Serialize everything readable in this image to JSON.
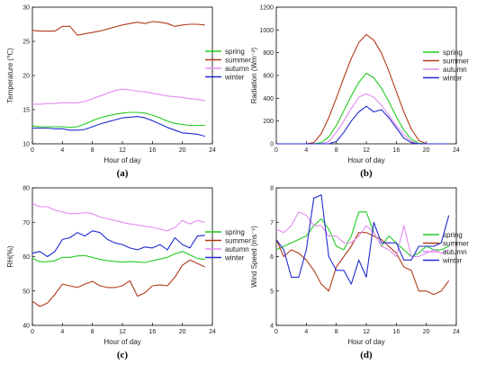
{
  "colors": {
    "spring": "#22cc22",
    "summer": "#b23a1a",
    "autumn": "#e38cf0",
    "winter": "#1f2bd0"
  },
  "chart_data": [
    {
      "id": "a",
      "type": "line",
      "panel_label": "(a)",
      "xlabel": "Hour of day",
      "ylabel": "Temperature (℃)",
      "xlim": [
        0,
        24
      ],
      "ylim": [
        10,
        30
      ],
      "xticks": [
        0,
        4,
        8,
        12,
        16,
        20,
        24
      ],
      "yticks": [
        10,
        15,
        20,
        25,
        30
      ],
      "legend_position": "right",
      "x": [
        0,
        1,
        2,
        3,
        4,
        5,
        6,
        7,
        8,
        9,
        10,
        11,
        12,
        13,
        14,
        15,
        16,
        17,
        18,
        19,
        20,
        21,
        22,
        23
      ],
      "series": [
        {
          "name": "spring",
          "color_key": "spring",
          "values": [
            12.6,
            12.5,
            12.5,
            12.5,
            12.5,
            12.4,
            12.5,
            12.9,
            13.4,
            13.8,
            14.1,
            14.3,
            14.5,
            14.6,
            14.6,
            14.5,
            14.2,
            13.8,
            13.3,
            13.0,
            12.8,
            12.7,
            12.7,
            12.7
          ]
        },
        {
          "name": "summer",
          "color_key": "summer",
          "values": [
            26.6,
            26.5,
            26.5,
            26.5,
            27.2,
            27.2,
            25.9,
            26.1,
            26.3,
            26.5,
            26.8,
            27.1,
            27.4,
            27.6,
            27.8,
            27.6,
            27.9,
            27.8,
            27.6,
            27.2,
            27.4,
            27.5,
            27.5,
            27.4
          ]
        },
        {
          "name": "autumn",
          "color_key": "autumn",
          "values": [
            15.8,
            15.8,
            15.9,
            15.9,
            16.0,
            16.0,
            16.0,
            16.2,
            16.6,
            17.0,
            17.4,
            17.8,
            18.0,
            17.9,
            17.7,
            17.6,
            17.4,
            17.2,
            17.0,
            16.9,
            16.8,
            16.6,
            16.5,
            16.3
          ]
        },
        {
          "name": "winter",
          "color_key": "winter",
          "values": [
            12.3,
            12.3,
            12.3,
            12.2,
            12.2,
            12.0,
            12.0,
            12.1,
            12.5,
            12.9,
            13.2,
            13.5,
            13.8,
            13.9,
            14.0,
            13.8,
            13.4,
            12.9,
            12.4,
            12.0,
            11.6,
            11.5,
            11.4,
            11.1
          ]
        }
      ]
    },
    {
      "id": "b",
      "type": "line",
      "panel_label": "(b)",
      "xlabel": "Hour of day",
      "ylabel": "Radiation (Wm⁻²)",
      "xlim": [
        0,
        24
      ],
      "ylim": [
        0,
        1200
      ],
      "xticks": [
        0,
        4,
        8,
        12,
        16,
        20,
        24
      ],
      "yticks": [
        0,
        200,
        400,
        600,
        800,
        1000,
        1200
      ],
      "legend_position": "top-right",
      "x": [
        0,
        1,
        2,
        3,
        4,
        5,
        6,
        7,
        8,
        9,
        10,
        11,
        12,
        13,
        14,
        15,
        16,
        17,
        18,
        19,
        20,
        21,
        22,
        23
      ],
      "series": [
        {
          "name": "spring",
          "color_key": "spring",
          "values": [
            0,
            0,
            0,
            0,
            0,
            0,
            10,
            60,
            160,
            290,
            420,
            540,
            620,
            580,
            490,
            370,
            240,
            120,
            40,
            5,
            0,
            0,
            0,
            0
          ]
        },
        {
          "name": "summer",
          "color_key": "summer",
          "values": [
            0,
            0,
            0,
            0,
            0,
            10,
            90,
            230,
            400,
            580,
            750,
            890,
            960,
            910,
            800,
            640,
            460,
            280,
            130,
            30,
            0,
            0,
            0,
            0
          ]
        },
        {
          "name": "autumn",
          "color_key": "autumn",
          "values": [
            0,
            0,
            0,
            0,
            0,
            0,
            0,
            20,
            100,
            200,
            310,
            410,
            440,
            410,
            340,
            250,
            160,
            80,
            20,
            0,
            0,
            0,
            0,
            0
          ]
        },
        {
          "name": "winter",
          "color_key": "winter",
          "values": [
            0,
            0,
            0,
            0,
            0,
            0,
            0,
            0,
            20,
            100,
            200,
            280,
            330,
            280,
            300,
            230,
            140,
            50,
            10,
            0,
            0,
            0,
            0,
            0
          ]
        }
      ]
    },
    {
      "id": "c",
      "type": "line",
      "panel_label": "(c)",
      "xlabel": "Hour of day",
      "ylabel": "RH(%)",
      "xlim": [
        0,
        24
      ],
      "ylim": [
        40,
        80
      ],
      "xticks": [
        0,
        4,
        8,
        12,
        16,
        20,
        24
      ],
      "yticks": [
        40,
        50,
        60,
        70,
        80
      ],
      "legend_position": "right",
      "x": [
        0,
        1,
        2,
        3,
        4,
        5,
        6,
        7,
        8,
        9,
        10,
        11,
        12,
        13,
        14,
        15,
        16,
        17,
        18,
        19,
        20,
        21,
        22,
        23
      ],
      "series": [
        {
          "name": "spring",
          "color_key": "spring",
          "values": [
            59.5,
            58.5,
            58.5,
            58.8,
            59.8,
            59.8,
            60.2,
            60.3,
            59.8,
            59.2,
            58.8,
            58.6,
            58.4,
            58.6,
            58.4,
            58.3,
            58.8,
            59.3,
            59.8,
            60.8,
            61.5,
            60.5,
            59.5,
            59.2
          ]
        },
        {
          "name": "summer",
          "color_key": "summer",
          "values": [
            47.0,
            45.5,
            46.5,
            49.0,
            52.0,
            51.5,
            51.0,
            52.0,
            52.8,
            51.5,
            51.0,
            51.0,
            51.5,
            53.0,
            48.5,
            49.5,
            51.5,
            51.8,
            51.5,
            54.0,
            57.5,
            59.0,
            58.0,
            57.0
          ]
        },
        {
          "name": "autumn",
          "color_key": "autumn",
          "values": [
            75.5,
            74.5,
            74.5,
            73.5,
            73.0,
            72.5,
            72.5,
            72.8,
            72.5,
            71.5,
            71.0,
            70.5,
            70.0,
            69.5,
            69.2,
            68.8,
            68.5,
            68.0,
            67.5,
            68.5,
            70.5,
            69.5,
            70.5,
            70.0
          ]
        },
        {
          "name": "winter",
          "color_key": "winter",
          "values": [
            61.0,
            61.5,
            60.0,
            61.5,
            65.0,
            65.5,
            67.0,
            66.0,
            67.5,
            67.0,
            65.0,
            64.0,
            63.5,
            62.5,
            62.0,
            62.8,
            62.5,
            63.5,
            62.0,
            65.5,
            63.5,
            62.5,
            66.0,
            66.2
          ]
        }
      ]
    },
    {
      "id": "d",
      "type": "line",
      "panel_label": "(d)",
      "xlabel": "Hour of day",
      "ylabel": "Wind Speed (ms⁻¹)",
      "xlim": [
        0,
        24
      ],
      "ylim": [
        4,
        8
      ],
      "xticks": [
        0,
        4,
        8,
        12,
        16,
        20,
        24
      ],
      "yticks": [
        4,
        5,
        6,
        7,
        8
      ],
      "legend_position": "right",
      "x": [
        0,
        1,
        2,
        3,
        4,
        5,
        6,
        7,
        8,
        9,
        10,
        11,
        12,
        13,
        14,
        15,
        16,
        17,
        18,
        19,
        20,
        21,
        22,
        23
      ],
      "series": [
        {
          "name": "spring",
          "color_key": "spring",
          "values": [
            6.2,
            6.3,
            6.4,
            6.5,
            6.6,
            6.9,
            7.1,
            6.8,
            6.3,
            6.2,
            6.6,
            7.3,
            7.3,
            6.7,
            6.3,
            6.6,
            6.4,
            6.2,
            6.0,
            6.1,
            6.3,
            6.2,
            6.2,
            6.3
          ]
        },
        {
          "name": "summer",
          "color_key": "summer",
          "values": [
            6.5,
            6.0,
            6.2,
            6.1,
            5.9,
            5.6,
            5.2,
            5.0,
            5.7,
            6.0,
            6.3,
            6.7,
            6.7,
            6.6,
            6.5,
            6.3,
            6.1,
            5.7,
            5.6,
            5.0,
            5.0,
            4.9,
            5.0,
            5.3
          ]
        },
        {
          "name": "autumn",
          "color_key": "autumn",
          "values": [
            6.8,
            6.7,
            6.9,
            7.3,
            7.2,
            6.9,
            6.9,
            6.6,
            6.6,
            6.4,
            6.4,
            6.6,
            6.9,
            6.7,
            6.3,
            6.2,
            6.0,
            6.9,
            6.0,
            6.0,
            6.1,
            6.2,
            6.1,
            6.2
          ]
        },
        {
          "name": "winter",
          "color_key": "winter",
          "values": [
            6.5,
            6.2,
            5.4,
            5.4,
            6.2,
            7.7,
            7.8,
            6.0,
            5.6,
            5.6,
            5.2,
            5.9,
            5.4,
            7.0,
            6.4,
            6.4,
            6.4,
            5.9,
            5.9,
            6.3,
            6.3,
            6.3,
            6.4,
            7.2
          ]
        }
      ]
    }
  ]
}
